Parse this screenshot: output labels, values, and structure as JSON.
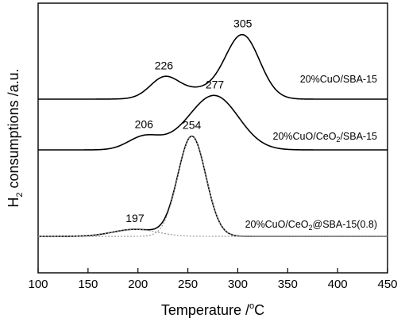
{
  "chart_data": {
    "type": "line",
    "title": "",
    "xlabel": "Temperature /°C",
    "ylabel": "H2 consumptions /a.u.",
    "xlim": [
      100,
      450
    ],
    "x_ticks": [
      100,
      150,
      200,
      250,
      300,
      350,
      400,
      450
    ],
    "grid": false,
    "legend": "none",
    "series": [
      {
        "name": "20%CuO/SBA-15",
        "style": "solid",
        "baseline": 0.0,
        "peaks": [
          {
            "center": 226,
            "height": 0.19,
            "width": 14
          },
          {
            "center": 305,
            "height": 0.65,
            "width": 17
          },
          {
            "center": 260,
            "height": 0.1,
            "width": 28
          }
        ],
        "peak_labels": [
          {
            "x": 226,
            "label": "226"
          },
          {
            "x": 305,
            "label": "305"
          }
        ]
      },
      {
        "name": "20%CuO/CeO2/SBA-15",
        "style": "solid",
        "baseline": 0.0,
        "peaks": [
          {
            "center": 206,
            "height": 0.13,
            "width": 16
          },
          {
            "center": 277,
            "height": 0.54,
            "width": 24
          },
          {
            "center": 240,
            "height": 0.05,
            "width": 20
          }
        ],
        "peak_labels": [
          {
            "x": 206,
            "label": "206"
          },
          {
            "x": 277,
            "label": "277"
          }
        ]
      },
      {
        "name": "20%CuO/CeO2@SBA-15(0.8)",
        "style": "solid",
        "baseline": 0.0,
        "peaks": [
          {
            "center": 197,
            "height": 0.07,
            "width": 22
          },
          {
            "center": 254,
            "height": 1.0,
            "width": 14
          }
        ],
        "peak_labels": [
          {
            "x": 197,
            "label": "197"
          },
          {
            "x": 254,
            "label": "254"
          }
        ]
      },
      {
        "name": "",
        "style": "dotted",
        "baseline": 0.0,
        "peaks": [
          {
            "center": 197,
            "height": 0.07,
            "width": 22
          }
        ]
      },
      {
        "name": "",
        "style": "dotted",
        "baseline": 0.0,
        "peaks": [
          {
            "center": 254,
            "height": 1.0,
            "width": 14
          }
        ]
      }
    ]
  },
  "labels": {
    "xlabel_main": "Temperature /",
    "xlabel_sup": "o",
    "xlabel_unit": "C",
    "ylabel_h": "H",
    "ylabel_sub": "2",
    "ylabel_rest": " consumptions /a.u.",
    "s1_text": "20%CuO/SBA-15",
    "s2_pre": "20%CuO/CeO",
    "s2_sub": "2",
    "s2_post": "/SBA-15",
    "s3_pre": "20%CuO/CeO",
    "s3_sub": "2",
    "s3_post": "@SBA-15(0.8)"
  },
  "colors": {
    "line": "#000000",
    "dotted": "#9a9a9a",
    "axis": "#000000"
  }
}
